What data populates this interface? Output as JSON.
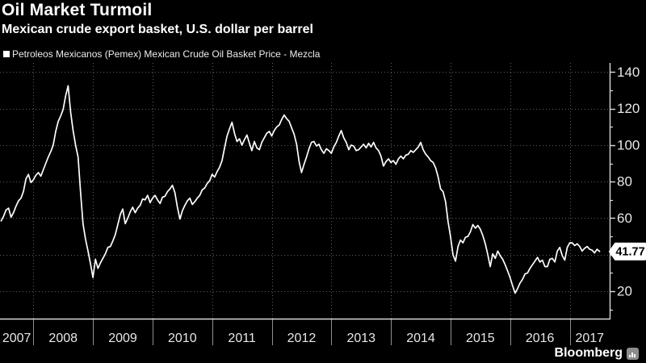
{
  "header": {
    "title": "Oil Market Turmoil",
    "subtitle": "Mexican crude export basket, U.S. dollar per barrel"
  },
  "legend": {
    "swatch_shape": "square",
    "label": "Petroleos Mexicanos (Pemex) Mexican Crude Oil Basket Price - Mezcla"
  },
  "branding": {
    "logo_text": "Bloomberg",
    "logo_icon": "bar-chart-icon"
  },
  "colors": {
    "background": "#000000",
    "line": "#ffffff",
    "title_text": "#ffffff",
    "axis_label": "#e8e8e8",
    "grid": "#606060",
    "axis_line": "#d9d9d9",
    "year_tick": "#8f8f8f",
    "badge_bg": "#ffffff",
    "badge_text": "#000000"
  },
  "chart_data": {
    "type": "line",
    "title": "Oil Market Turmoil",
    "subtitle": "Mexican crude export basket, U.S. dollar per barrel",
    "grid": "dotted",
    "legend_position": "top-left",
    "y_axis_side": "right",
    "xlim": [
      2007.44,
      2017.67
    ],
    "ylim": [
      5,
      145
    ],
    "x_ticks": [
      2008,
      2009,
      2010,
      2011,
      2012,
      2013,
      2014,
      2015,
      2016,
      2017
    ],
    "x_tick_labels": [
      "2007",
      "2008",
      "2009",
      "2010",
      "2011",
      "2012",
      "2013",
      "2014",
      "2015",
      "2016",
      "2017"
    ],
    "y_major_ticks": [
      20,
      40,
      60,
      80,
      100,
      120,
      140
    ],
    "y_minor_ticks": [
      10,
      30,
      50,
      70,
      90,
      110,
      130
    ],
    "y_labels": [
      [
        20,
        "20"
      ],
      [
        60,
        "60"
      ],
      [
        80,
        "80"
      ],
      [
        100,
        "100"
      ],
      [
        120,
        "120"
      ],
      [
        140,
        "140"
      ]
    ],
    "last_price": 41.77,
    "last_price_label": "41.77",
    "series": [
      {
        "name": "Petroleos Mexicanos (Pemex) Mexican Crude Oil Basket Price - Mezcla",
        "x_unit": "decimal_year",
        "x_start": 2007.4583,
        "x_step": 0.0416667,
        "values": [
          58.5,
          61,
          64.5,
          65.5,
          60.5,
          63,
          66.5,
          69.5,
          71,
          74.5,
          81.5,
          84,
          79.5,
          81,
          83.5,
          85,
          83,
          86.5,
          90,
          93.5,
          96.5,
          100,
          107.5,
          113,
          116,
          119.5,
          127,
          132.5,
          118,
          108,
          100,
          93.5,
          74,
          57,
          48.5,
          42,
          35,
          27.5,
          37.5,
          32.5,
          35.5,
          38,
          40.5,
          44,
          44.5,
          47.5,
          51,
          56.5,
          62,
          65,
          57,
          60,
          63.5,
          66,
          63,
          65.5,
          67,
          70.5,
          70,
          72.5,
          68.5,
          71,
          72.5,
          70,
          68,
          71.5,
          72,
          74.5,
          76,
          78,
          74,
          66,
          59.5,
          64,
          67,
          69.5,
          71,
          67.5,
          69,
          71,
          72.5,
          75.5,
          76.5,
          79,
          80.5,
          84,
          82.5,
          85.5,
          88,
          91.5,
          98.5,
          105,
          109,
          112.5,
          106.5,
          102,
          103.5,
          100,
          103,
          105.5,
          101,
          97,
          102,
          98.5,
          97.5,
          101.5,
          104,
          106.5,
          107.5,
          105,
          108,
          110,
          111,
          114,
          116.5,
          114.5,
          113,
          109.5,
          106,
          100.5,
          91,
          85,
          89.5,
          93.5,
          98,
          101.5,
          102,
          99.5,
          100.5,
          97.5,
          95.5,
          98,
          97,
          95.5,
          99,
          101.5,
          105,
          108,
          104,
          101.5,
          97.5,
          100,
          99.5,
          97,
          97.5,
          99,
          100.5,
          98.5,
          101,
          99,
          101.5,
          98.5,
          97,
          94,
          88.5,
          91,
          92.5,
          90.5,
          91.5,
          89.5,
          92.5,
          94,
          92.5,
          94.5,
          95,
          97,
          96,
          97.5,
          99,
          101.5,
          97.5,
          95,
          93.5,
          91.5,
          90.5,
          87.5,
          82.5,
          76,
          74.5,
          69,
          58,
          50,
          40,
          36.5,
          44.5,
          48,
          46.5,
          49.5,
          50,
          52.5,
          56.5,
          54.5,
          56,
          54,
          50.5,
          46,
          40,
          33.5,
          40.5,
          38,
          42,
          39.5,
          37.5,
          34.5,
          31,
          27.5,
          23,
          18.9,
          21.5,
          24.5,
          26.5,
          29.5,
          30,
          32.5,
          34.5,
          36.5,
          38.5,
          36,
          37,
          33.5,
          33.5,
          37.5,
          38,
          36,
          42,
          44,
          39.5,
          37,
          44,
          46.5,
          46.5,
          45,
          46,
          44.5,
          42,
          43.5,
          44.5,
          43,
          42.5,
          41,
          43,
          41.77
        ]
      }
    ]
  }
}
